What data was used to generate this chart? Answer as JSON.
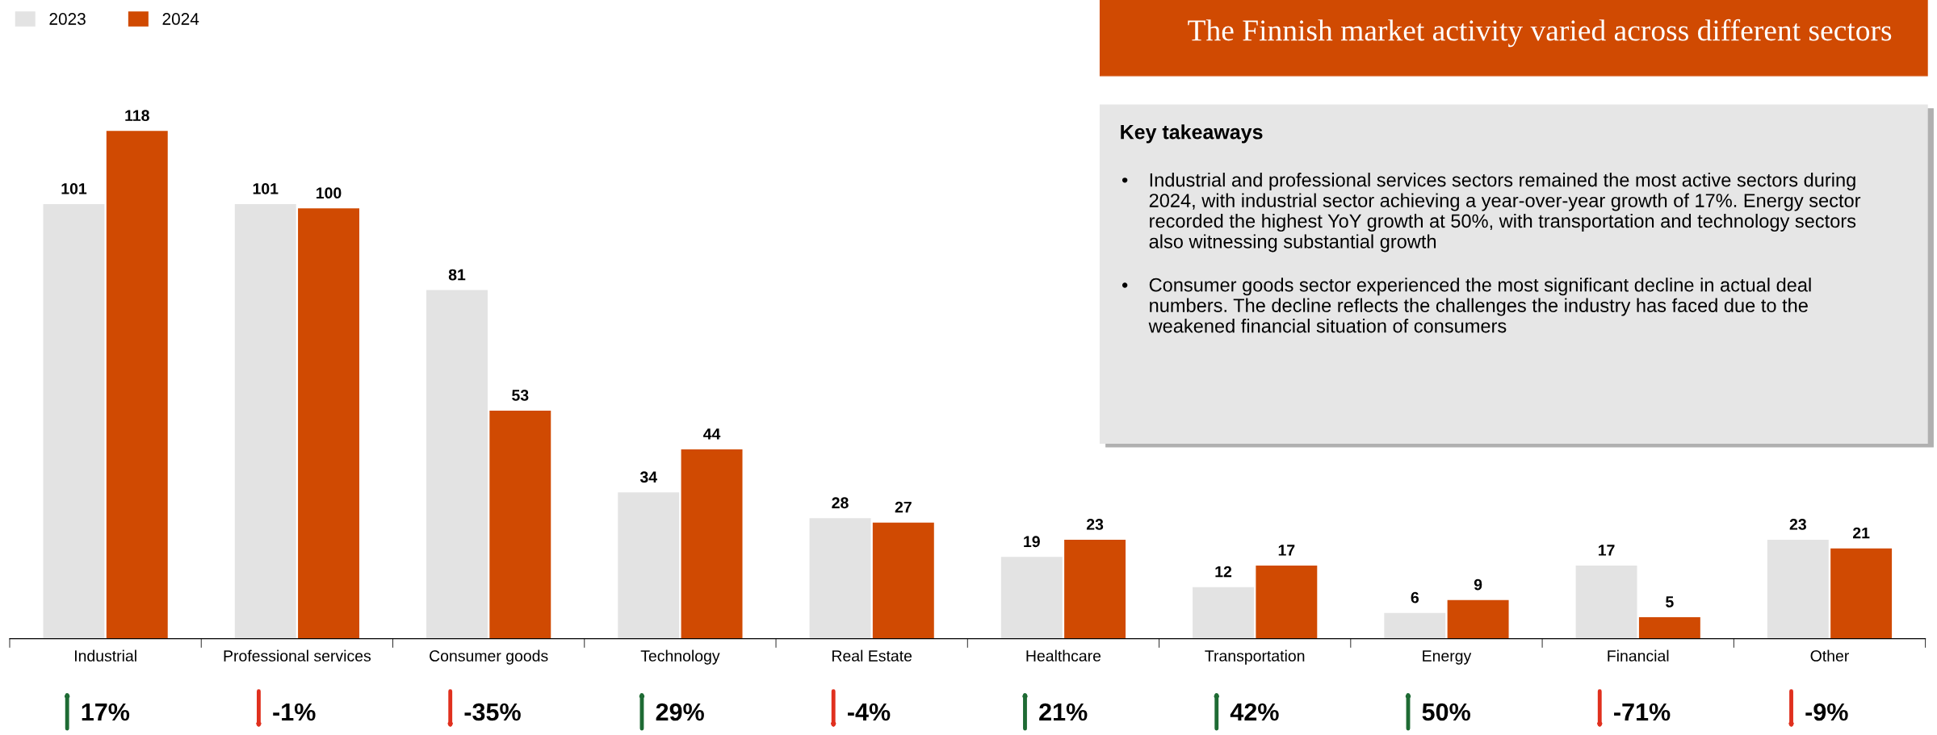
{
  "chart_data": {
    "type": "bar",
    "title": "The Finnish market activity varied across different sectors",
    "categories": [
      "Industrial",
      "Professional services",
      "Consumer goods",
      "Technology",
      "Real Estate",
      "Healthcare",
      "Transportation",
      "Energy",
      "Financial",
      "Other"
    ],
    "series": [
      {
        "name": "2023",
        "color": "#e3e3e3",
        "values": [
          101,
          101,
          81,
          34,
          28,
          19,
          12,
          6,
          17,
          23
        ]
      },
      {
        "name": "2024",
        "color": "#d04a02",
        "values": [
          118,
          100,
          53,
          44,
          27,
          23,
          17,
          9,
          5,
          21
        ]
      }
    ],
    "data_labels": true,
    "legend": "top left",
    "grid": false,
    "annotations": [
      "17%",
      "-1%",
      "-35%",
      "29%",
      "-4%",
      "21%",
      "42%",
      "50%",
      "-71%",
      "-9%",
      "Key takeaways",
      "• Industrial and professional services sectors remained the most active sectors during 2024, with industrial sector achieving a year-over-year growth of 17%. Energy sector recorded the highest YoY growth at 50%, with transportation and technology sectors also witnessing substantial growth",
      "• Consumer goods sector experienced the most significant decline in actual deal numbers. The decline reflects the challenges the industry has faced due to the weakened financial situation of consumers"
    ]
  }
}
